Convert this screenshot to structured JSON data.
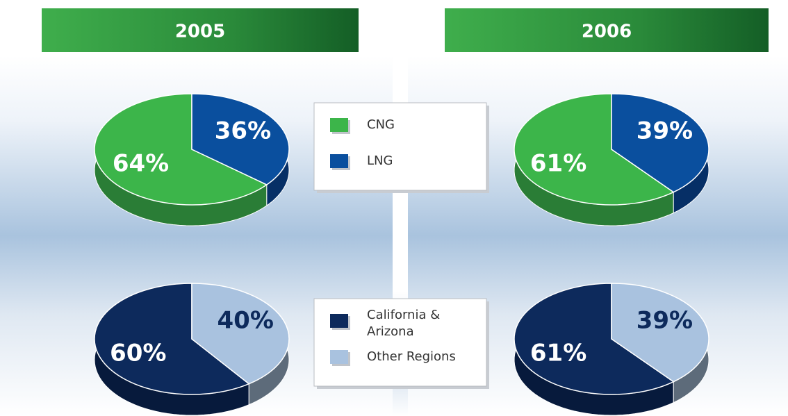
{
  "chart_data": [
    {
      "type": "pie",
      "categories": [
        "CNG",
        "LNG"
      ],
      "colors": [
        "#3cb54a",
        "#0a4f9e"
      ],
      "side_colors": [
        "#2a7d36",
        "#062f66"
      ],
      "series": [
        {
          "name": "2005",
          "values": [
            64,
            36
          ],
          "value_labels": [
            "64%",
            "36%"
          ]
        },
        {
          "name": "2006",
          "values": [
            61,
            39
          ],
          "value_labels": [
            "61%",
            "39%"
          ]
        }
      ]
    },
    {
      "type": "pie",
      "categories": [
        "California & Arizona",
        "Other Regions"
      ],
      "colors": [
        "#0d2a5c",
        "#a9c2df"
      ],
      "side_colors": [
        "#071a3c",
        "#5d6b7a"
      ],
      "series": [
        {
          "name": "2005",
          "values": [
            60,
            40
          ],
          "value_labels": [
            "60%",
            "40%"
          ]
        },
        {
          "name": "2006",
          "values": [
            61,
            39
          ],
          "value_labels": [
            "61%",
            "39%"
          ]
        }
      ]
    }
  ]
}
